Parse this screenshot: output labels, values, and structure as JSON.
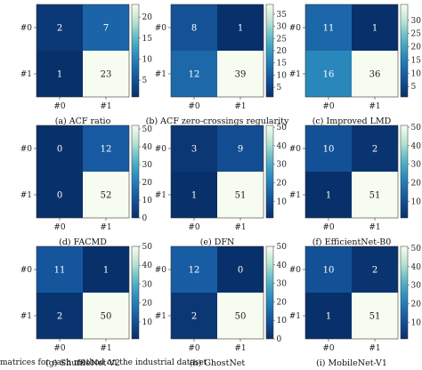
{
  "chart_data": [
    {
      "type": "heatmap",
      "caption": "(a) ACF ratio",
      "rows": [
        "#0",
        "#1"
      ],
      "cols": [
        "#0",
        "#1"
      ],
      "matrix": [
        [
          2,
          7
        ],
        [
          1,
          23
        ]
      ],
      "colorbar_ticks": [
        5,
        10,
        15,
        20
      ],
      "vmin": 1,
      "vmax": 23
    },
    {
      "type": "heatmap",
      "caption": "(b) ACF zero-crossings regularity",
      "rows": [
        "#0",
        "#1"
      ],
      "cols": [
        "#0",
        "#1"
      ],
      "matrix": [
        [
          8,
          1
        ],
        [
          12,
          39
        ]
      ],
      "colorbar_ticks": [
        5,
        10,
        15,
        20,
        25,
        30,
        35
      ],
      "vmin": 1,
      "vmax": 39
    },
    {
      "type": "heatmap",
      "caption": "(c) Improved LMD",
      "rows": [
        "#0",
        "#1"
      ],
      "cols": [
        "#0",
        "#1"
      ],
      "matrix": [
        [
          11,
          1
        ],
        [
          16,
          36
        ]
      ],
      "colorbar_ticks": [
        5,
        10,
        15,
        20,
        25,
        30
      ],
      "vmin": 1,
      "vmax": 36
    },
    {
      "type": "heatmap",
      "caption": "(d) FACMD",
      "rows": [
        "#0",
        "#1"
      ],
      "cols": [
        "#0",
        "#1"
      ],
      "matrix": [
        [
          0,
          12
        ],
        [
          0,
          52
        ]
      ],
      "colorbar_ticks": [
        0,
        10,
        20,
        30,
        40,
        50
      ],
      "vmin": 0,
      "vmax": 52
    },
    {
      "type": "heatmap",
      "caption": "(e) DFN",
      "rows": [
        "#0",
        "#1"
      ],
      "cols": [
        "#0",
        "#1"
      ],
      "matrix": [
        [
          3,
          9
        ],
        [
          1,
          51
        ]
      ],
      "colorbar_ticks": [
        10,
        20,
        30,
        40,
        50
      ],
      "vmin": 1,
      "vmax": 51
    },
    {
      "type": "heatmap",
      "caption": "(f) EfficientNet-B0",
      "rows": [
        "#0",
        "#1"
      ],
      "cols": [
        "#0",
        "#1"
      ],
      "matrix": [
        [
          10,
          2
        ],
        [
          1,
          51
        ]
      ],
      "colorbar_ticks": [
        10,
        20,
        30,
        40,
        50
      ],
      "vmin": 1,
      "vmax": 51
    },
    {
      "type": "heatmap",
      "caption": "(g) ShuffleNet-V2",
      "rows": [
        "#0",
        "#1"
      ],
      "cols": [
        "#0",
        "#1"
      ],
      "matrix": [
        [
          11,
          1
        ],
        [
          2,
          50
        ]
      ],
      "colorbar_ticks": [
        10,
        20,
        30,
        40,
        50
      ],
      "vmin": 1,
      "vmax": 50
    },
    {
      "type": "heatmap",
      "caption": "(h) GhostNet",
      "rows": [
        "#0",
        "#1"
      ],
      "cols": [
        "#0",
        "#1"
      ],
      "matrix": [
        [
          12,
          0
        ],
        [
          2,
          50
        ]
      ],
      "colorbar_ticks": [
        0,
        10,
        20,
        30,
        40,
        50
      ],
      "vmin": 0,
      "vmax": 50
    },
    {
      "type": "heatmap",
      "caption": "(i) MobileNet-V1",
      "rows": [
        "#0",
        "#1"
      ],
      "cols": [
        "#0",
        "#1"
      ],
      "matrix": [
        [
          10,
          2
        ],
        [
          1,
          51
        ]
      ],
      "colorbar_ticks": [
        10,
        20,
        30,
        40,
        50
      ],
      "vmin": 1,
      "vmax": 51
    }
  ],
  "footer": "matrices for each method on the industrial dataset",
  "colors": {
    "low": "#08306b",
    "mid": "#2b8cbe",
    "high": "#f7fcf0"
  }
}
